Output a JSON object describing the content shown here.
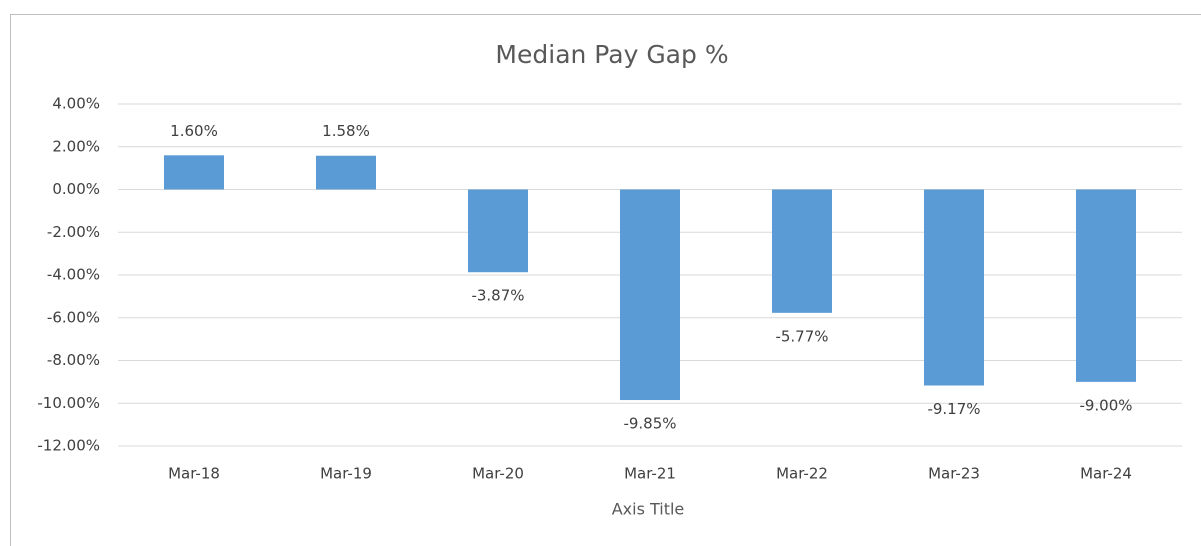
{
  "chart_data": {
    "type": "bar",
    "title": "Median Pay Gap %",
    "categories": [
      "Mar-18",
      "Mar-19",
      "Mar-20",
      "Mar-21",
      "Mar-22",
      "Mar-23",
      "Mar-24"
    ],
    "values": [
      1.6,
      1.58,
      -3.87,
      -9.85,
      -5.77,
      -9.17,
      -9.0
    ],
    "value_labels": [
      "1.60%",
      "1.58%",
      "-3.87%",
      "-9.85%",
      "-5.77%",
      "-9.17%",
      "-9.00%"
    ],
    "color": "#5b9bd5",
    "x_label": "Axis Title",
    "ylim": [
      -12,
      4
    ],
    "yticks": [
      {
        "value": 4,
        "label": "4.00%"
      },
      {
        "value": 2,
        "label": "2.00%"
      },
      {
        "value": 0,
        "label": "0.00%"
      },
      {
        "value": -2,
        "label": "-2.00%"
      },
      {
        "value": -4,
        "label": "-4.00%"
      },
      {
        "value": -6,
        "label": "-6.00%"
      },
      {
        "value": -8,
        "label": "-8.00%"
      },
      {
        "value": -10,
        "label": "-10.00%"
      },
      {
        "value": -12,
        "label": "-12.00%"
      }
    ],
    "grid": true
  }
}
